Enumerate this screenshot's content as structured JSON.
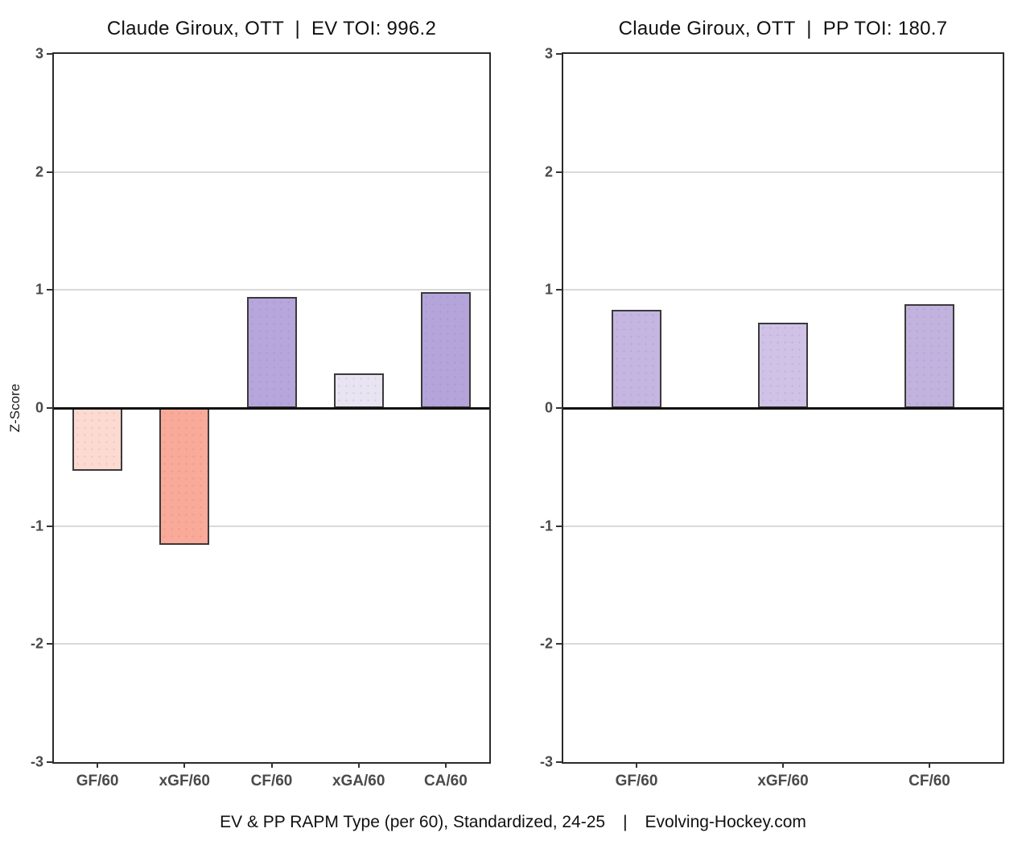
{
  "caption": {
    "left": "EV & PP RAPM Type (per 60), Standardized, 24-25",
    "separator": "|",
    "right": "Evolving-Hockey.com"
  },
  "colors": {
    "background": "#ffffff",
    "panel_border": "#2b2b2b",
    "gridline": "#d9d9d9",
    "zero_line": "#111111",
    "tick_label": "#4a4a4a",
    "title_text": "#111111",
    "bar_border": "#3a3a3a"
  },
  "chart_data": [
    {
      "type": "bar",
      "title": "Claude Giroux, OTT  |  EV TOI: 996.2",
      "ylabel": "Z-Score",
      "xlabel": "",
      "categories": [
        "GF/60",
        "xGF/60",
        "CF/60",
        "xGA/60",
        "CA/60"
      ],
      "values": [
        -0.53,
        -1.16,
        0.94,
        0.29,
        0.98
      ],
      "bar_colors": [
        "#fcdad1",
        "#f9aa98",
        "#b7a6db",
        "#e8e4f1",
        "#b5a4da"
      ],
      "ylim": [
        -3,
        3
      ],
      "yticks": [
        3,
        2,
        1,
        0,
        -1,
        -2,
        -3
      ],
      "grid": true,
      "legend_position": "none"
    },
    {
      "type": "bar",
      "title": "Claude Giroux, OTT  |  PP TOI: 180.7",
      "ylabel": "",
      "xlabel": "",
      "categories": [
        "GF/60",
        "xGF/60",
        "CF/60"
      ],
      "values": [
        0.83,
        0.72,
        0.88
      ],
      "bar_colors": [
        "#c5b5e1",
        "#cfc2e6",
        "#c2b2de"
      ],
      "ylim": [
        -3,
        3
      ],
      "yticks": [
        3,
        2,
        1,
        0,
        -1,
        -2,
        -3
      ],
      "grid": true,
      "legend_position": "none"
    }
  ]
}
